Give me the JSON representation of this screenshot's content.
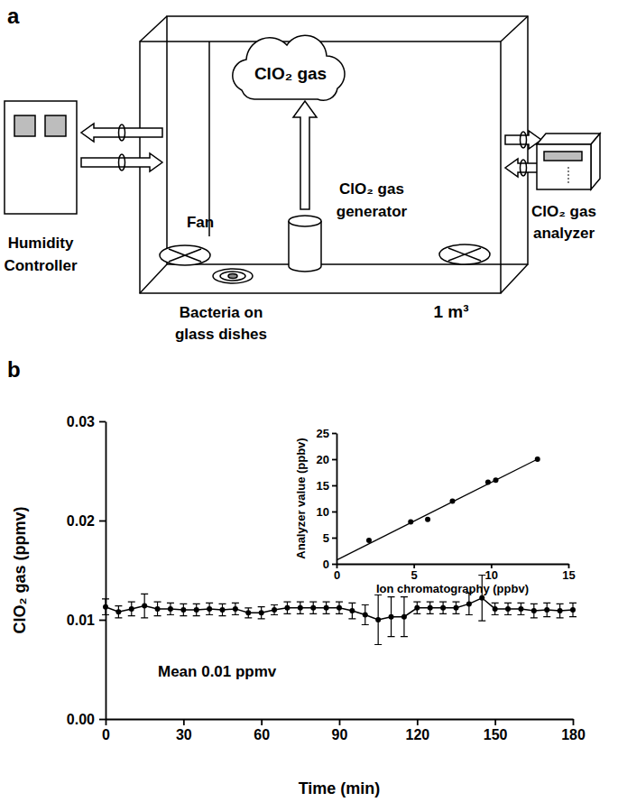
{
  "diagram": {
    "label": "a",
    "cloud": "ClO₂ gas",
    "humidity_controller": [
      "Humidity",
      "Controller"
    ],
    "fan": "Fan",
    "generator": [
      "ClO₂ gas",
      "generator"
    ],
    "analyzer": [
      "ClO₂ gas",
      "analyzer"
    ],
    "bacteria": [
      "Bacteria on",
      "glass dishes"
    ],
    "volume": "1 m³"
  },
  "chart_data": [
    {
      "type": "line",
      "title": "b",
      "x_label": "Time (min)",
      "y_label": "ClO₂ gas (ppmv)",
      "annotations": [
        "Mean 0.01 ppmv"
      ],
      "xlim": [
        0,
        180
      ],
      "xticks": [
        0,
        30,
        60,
        90,
        120,
        150,
        180
      ],
      "ylim": [
        0,
        0.03
      ],
      "yticks": [
        {
          "value": 0,
          "label": "0.00"
        },
        {
          "value": 0.01,
          "label": "0.01"
        },
        {
          "value": 0.02,
          "label": "0.02"
        },
        {
          "value": 0.03,
          "label": "0.03"
        }
      ],
      "series": [
        {
          "type": "line",
          "color": "#000000",
          "marker": "circle",
          "line_style": "solid",
          "x": [
            0,
            5,
            10,
            15,
            20,
            25,
            30,
            35,
            40,
            45,
            50,
            55,
            60,
            65,
            70,
            75,
            80,
            85,
            90,
            95,
            100,
            105,
            110,
            115,
            120,
            125,
            130,
            135,
            140,
            145,
            150,
            155,
            160,
            165,
            170,
            175,
            180
          ],
          "values": [
            0.0113,
            0.0108,
            0.0111,
            0.0114,
            0.0111,
            0.0111,
            0.011,
            0.011,
            0.0111,
            0.011,
            0.0111,
            0.0107,
            0.0107,
            0.011,
            0.0112,
            0.0112,
            0.0112,
            0.0112,
            0.0112,
            0.0109,
            0.0105,
            0.01,
            0.0103,
            0.0103,
            0.0112,
            0.0112,
            0.0112,
            0.0112,
            0.0116,
            0.0122,
            0.0111,
            0.0111,
            0.0111,
            0.0109,
            0.011,
            0.0109,
            0.011
          ],
          "errors": [
            0.0008,
            0.0006,
            0.0007,
            0.0012,
            0.0007,
            0.0006,
            0.0006,
            0.0006,
            0.0006,
            0.0006,
            0.0006,
            0.0005,
            0.0006,
            0.0005,
            0.0006,
            0.0006,
            0.0006,
            0.0006,
            0.0006,
            0.0008,
            0.001,
            0.0025,
            0.002,
            0.002,
            0.0006,
            0.0006,
            0.0006,
            0.0006,
            0.0011,
            0.0023,
            0.0006,
            0.0006,
            0.0006,
            0.0007,
            0.0007,
            0.0007,
            0.0007
          ]
        }
      ]
    },
    {
      "type": "scatter",
      "x_label": "Ion chromatography (ppbv)",
      "y_label": "Analyzer value (ppbv)",
      "xlim": [
        0,
        15
      ],
      "xticks": [
        0,
        5,
        10,
        15
      ],
      "ylim": [
        0,
        25
      ],
      "yticks": [
        0,
        5,
        10,
        15,
        20,
        25
      ],
      "series": [
        {
          "type": "scatter",
          "color": "#000000",
          "marker": "circle",
          "x": [
            2.1,
            4.8,
            5.9,
            7.5,
            9.8,
            10.3,
            13
          ],
          "values": [
            4.5,
            8,
            8.5,
            12,
            15.6,
            16,
            20
          ]
        },
        {
          "type": "line",
          "color": "#000000",
          "line_style": "solid",
          "x": [
            0,
            13
          ],
          "values": [
            0.7,
            20
          ]
        }
      ]
    }
  ]
}
